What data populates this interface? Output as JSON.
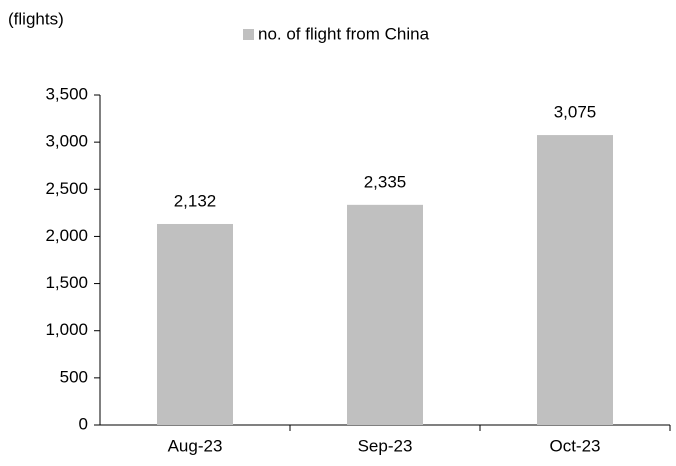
{
  "chart_data": {
    "type": "bar",
    "y_axis_label": "(flights)",
    "categories": [
      "Aug-23",
      "Sep-23",
      "Oct-23"
    ],
    "series": [
      {
        "name": "no. of flight from China",
        "color": "#c0c0c0",
        "values": [
          2132,
          2335,
          3075
        ],
        "value_labels": [
          "2,132",
          "2,335",
          "3,075"
        ]
      }
    ],
    "ylim": [
      0,
      3500
    ],
    "yticks": [
      0,
      500,
      {
        "value": 1000,
        "label": "1,000"
      },
      {
        "value": 1500,
        "label": "1,500"
      },
      {
        "value": 2000,
        "label": "2,000"
      },
      {
        "value": 2500,
        "label": "2,500"
      },
      {
        "value": 3000,
        "label": "3,000"
      },
      {
        "value": 3500,
        "label": "3,500"
      }
    ],
    "grid": false,
    "legend": "top"
  }
}
